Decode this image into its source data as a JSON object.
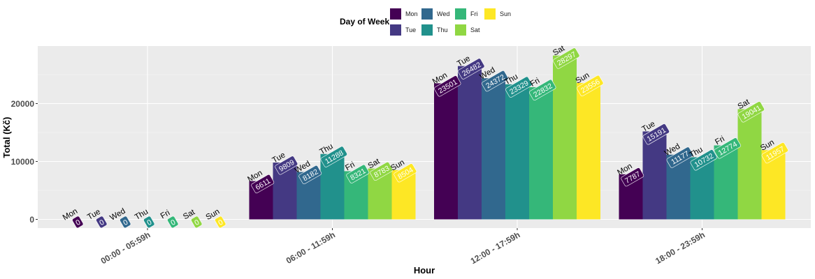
{
  "chart_data": {
    "type": "bar",
    "xlabel": "Hour",
    "ylabel": "Total (Kč)",
    "legend_title": "Day of Week",
    "legend_position": "top",
    "categories": [
      "00:00 - 05:59h",
      "06:00 - 11:59h",
      "12:00 - 17:59h",
      "18:00 - 23:59h"
    ],
    "ylim": [
      -1500,
      29800
    ],
    "yticks": [
      0,
      10000,
      20000
    ],
    "grid": true,
    "series": [
      {
        "name": "Mon",
        "color": "#440154",
        "values": [
          0,
          6611,
          23501,
          7787
        ]
      },
      {
        "name": "Tue",
        "color": "#443983",
        "values": [
          0,
          9809,
          26482,
          15191
        ]
      },
      {
        "name": "Wed",
        "color": "#31688e",
        "values": [
          0,
          8182,
          24372,
          11177
        ]
      },
      {
        "name": "Thu",
        "color": "#21918c",
        "values": [
          0,
          11288,
          23329,
          10732
        ]
      },
      {
        "name": "Fri",
        "color": "#35b779",
        "values": [
          0,
          8321,
          22832,
          12774
        ]
      },
      {
        "name": "Sat",
        "color": "#90d743",
        "values": [
          0,
          8783,
          28297,
          19041
        ]
      },
      {
        "name": "Sun",
        "color": "#fde725",
        "values": [
          0,
          8504,
          23556,
          11957
        ]
      }
    ]
  }
}
